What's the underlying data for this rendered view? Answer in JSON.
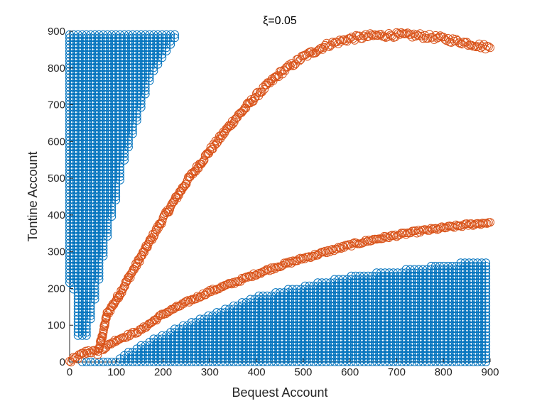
{
  "chart_data": {
    "type": "scatter",
    "title": "ξ=0.05",
    "xlabel": "Bequest Account",
    "ylabel": "Tontine Account",
    "xlim": [
      0,
      900
    ],
    "ylim": [
      0,
      900
    ],
    "xticks": [
      "0",
      "100",
      "200",
      "300",
      "400",
      "500",
      "600",
      "700",
      "800",
      "900"
    ],
    "yticks": [
      "0",
      "100",
      "200",
      "300",
      "400",
      "500",
      "600",
      "700",
      "800",
      "900"
    ],
    "grid": false,
    "legend": "none",
    "colors": {
      "blue": "#0072BD",
      "orange": "#D95319"
    },
    "series": [
      {
        "color": "#0072BD",
        "marker": "open-circle",
        "regions": [
          {
            "comment_free": true,
            "kind": "upper-left-wedge",
            "polygon": [
              [
                0,
                900
              ],
              [
                235,
                900
              ],
              [
                175,
                780
              ],
              [
                120,
                560
              ],
              [
                80,
                330
              ],
              [
                45,
                110
              ],
              [
                40,
                70
              ],
              [
                15,
                70
              ],
              [
                10,
                195
              ],
              [
                0,
                215
              ]
            ]
          },
          {
            "kind": "lower-right-wedge",
            "polygon": [
              [
                105,
                0
              ],
              [
                900,
                0
              ],
              [
                900,
                280
              ],
              [
                600,
                235
              ],
              [
                400,
                180
              ],
              [
                250,
                105
              ],
              [
                150,
                45
              ],
              [
                110,
                15
              ]
            ]
          },
          {
            "kind": "bottom-strip",
            "polygon": [
              [
                20,
                0
              ],
              [
                105,
                0
              ],
              [
                105,
                8
              ],
              [
                20,
                8
              ]
            ]
          }
        ]
      },
      {
        "color": "#D95319",
        "marker": "open-circle",
        "curves": [
          {
            "kind": "upper-curve",
            "points": [
              [
                0,
                0
              ],
              [
                40,
                30
              ],
              [
                60,
                25
              ],
              [
                70,
                70
              ],
              [
                80,
                130
              ],
              [
                100,
                170
              ],
              [
                150,
                280
              ],
              [
                200,
                390
              ],
              [
                250,
                490
              ],
              [
                300,
                575
              ],
              [
                350,
                655
              ],
              [
                400,
                725
              ],
              [
                450,
                785
              ],
              [
                500,
                830
              ],
              [
                550,
                862
              ],
              [
                600,
                880
              ],
              [
                650,
                888
              ],
              [
                700,
                890
              ],
              [
                750,
                888
              ],
              [
                800,
                880
              ],
              [
                850,
                868
              ],
              [
                900,
                855
              ]
            ],
            "spread": 14
          },
          {
            "kind": "lower-curve",
            "points": [
              [
                70,
                35
              ],
              [
                100,
                60
              ],
              [
                150,
                85
              ],
              [
                200,
                130
              ],
              [
                250,
                162
              ],
              [
                300,
                192
              ],
              [
                350,
                215
              ],
              [
                400,
                240
              ],
              [
                450,
                262
              ],
              [
                500,
                282
              ],
              [
                550,
                300
              ],
              [
                600,
                318
              ],
              [
                650,
                333
              ],
              [
                700,
                345
              ],
              [
                750,
                356
              ],
              [
                800,
                365
              ],
              [
                850,
                373
              ],
              [
                900,
                380
              ]
            ],
            "spread": 8
          }
        ]
      }
    ]
  }
}
